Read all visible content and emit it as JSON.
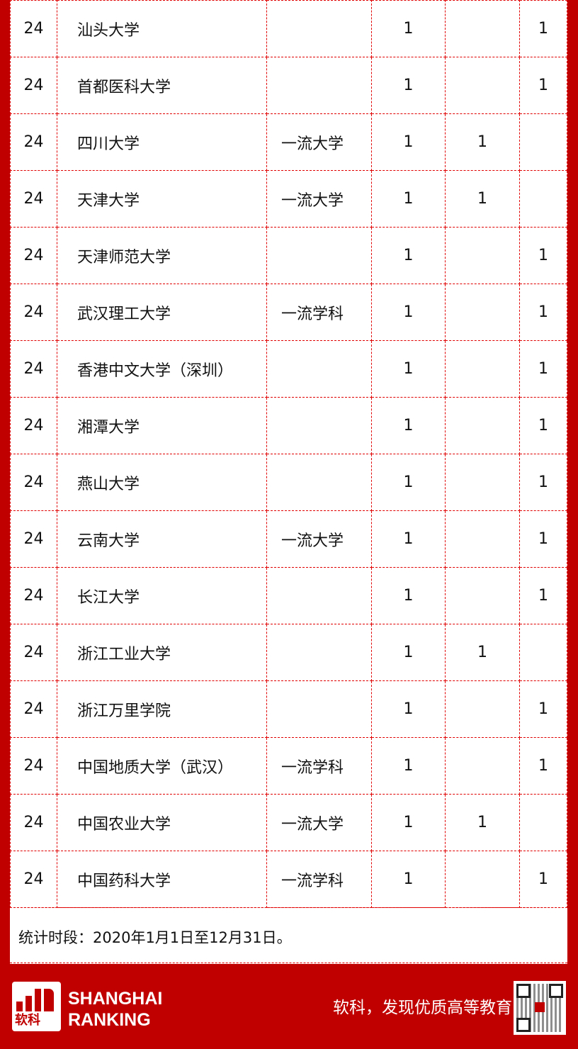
{
  "rows": [
    [
      "24",
      "汕头大学",
      "",
      "1",
      "",
      "1"
    ],
    [
      "24",
      "首都医科大学",
      "",
      "1",
      "",
      "1"
    ],
    [
      "24",
      "四川大学",
      "一流大学",
      "1",
      "1",
      ""
    ],
    [
      "24",
      "天津大学",
      "一流大学",
      "1",
      "1",
      ""
    ],
    [
      "24",
      "天津师范大学",
      "",
      "1",
      "",
      "1"
    ],
    [
      "24",
      "武汉理工大学",
      "一流学科",
      "1",
      "",
      "1"
    ],
    [
      "24",
      "香港中文大学（深圳）",
      "",
      "1",
      "",
      "1"
    ],
    [
      "24",
      "湘潭大学",
      "",
      "1",
      "",
      "1"
    ],
    [
      "24",
      "燕山大学",
      "",
      "1",
      "",
      "1"
    ],
    [
      "24",
      "云南大学",
      "一流大学",
      "1",
      "",
      "1"
    ],
    [
      "24",
      "长江大学",
      "",
      "1",
      "",
      "1"
    ],
    [
      "24",
      "浙江工业大学",
      "",
      "1",
      "1",
      ""
    ],
    [
      "24",
      "浙江万里学院",
      "",
      "1",
      "",
      "1"
    ],
    [
      "24",
      "中国地质大学（武汉）",
      "一流学科",
      "1",
      "",
      "1"
    ],
    [
      "24",
      "中国农业大学",
      "一流大学",
      "1",
      "1",
      ""
    ],
    [
      "24",
      "中国药科大学",
      "一流学科",
      "1",
      "",
      "1"
    ]
  ],
  "note": "统计时段：2020年1月1日至12月31日。",
  "footer": {
    "logo_cn": "软科",
    "brand_line1": "SHANGHAI",
    "brand_line2": "RANKING",
    "slogan": "软科，发现优质高等教育",
    "qr_icon": "qr-code-icon"
  },
  "colors": {
    "brand_red": "#c00000",
    "grid_line": "#e00000"
  }
}
